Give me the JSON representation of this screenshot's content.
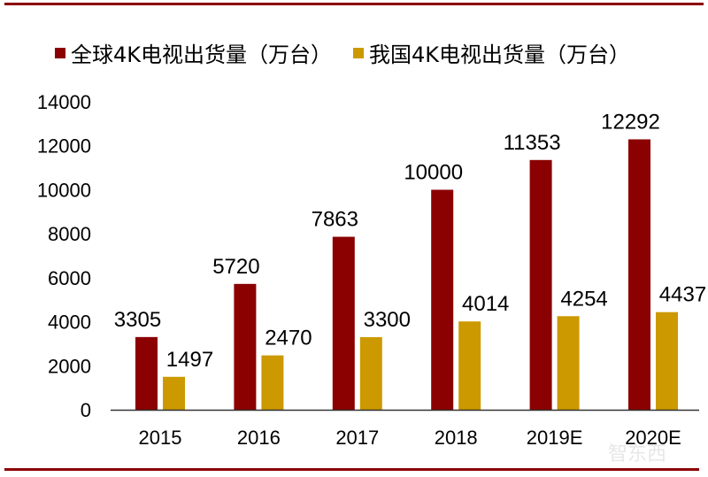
{
  "chart_data": {
    "type": "bar",
    "categories": [
      "2015",
      "2016",
      "2017",
      "2018",
      "2019E",
      "2020E"
    ],
    "series": [
      {
        "name": "全球4K电视出货量（万台）",
        "color": "#8B0000",
        "values": [
          3305,
          5720,
          7863,
          10000,
          11353,
          12292
        ]
      },
      {
        "name": "我国4K电视出货量（万台）",
        "color": "#CC9900",
        "values": [
          1497,
          2470,
          3300,
          4014,
          4254,
          4437
        ]
      }
    ],
    "ylim": [
      0,
      14000
    ],
    "yticks": [
      0,
      2000,
      4000,
      6000,
      8000,
      10000,
      12000,
      14000
    ],
    "grid": false,
    "legend": "top",
    "data_labels": true
  },
  "watermark": "智东西 zhidx.com"
}
